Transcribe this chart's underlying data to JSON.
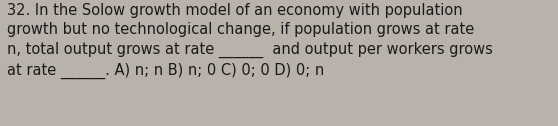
{
  "text": "32. In the Solow growth model of an economy with population\ngrowth but no technological change, if population grows at rate\nn, total output grows at rate ______  and output per workers grows\nat rate ______. A) n; n B) n; 0 C) 0; 0 D) 0; n",
  "bg_color": "#b8b2aa",
  "text_color": "#1a1a1a",
  "font_size": 10.5,
  "fig_width": 5.58,
  "fig_height": 1.26,
  "dpi": 100
}
